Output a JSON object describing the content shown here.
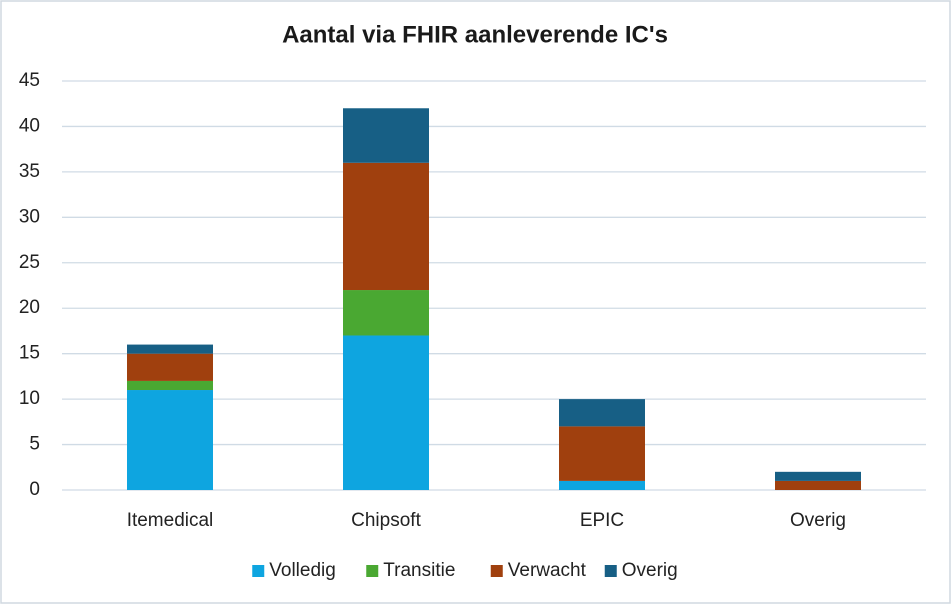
{
  "chart_data": {
    "type": "bar",
    "stacked": true,
    "title": "Aantal via FHIR aanleverende IC's",
    "categories": [
      "Itemedical",
      "Chipsoft",
      "EPIC",
      "Overig"
    ],
    "series": [
      {
        "name": "Volledig",
        "color": "#0ea5e0",
        "values": [
          11,
          17,
          1,
          0
        ]
      },
      {
        "name": "Transitie",
        "color": "#4aa832",
        "values": [
          1,
          5,
          0,
          0
        ]
      },
      {
        "name": "Verwacht",
        "color": "#a0400e",
        "values": [
          3,
          14,
          6,
          1
        ]
      },
      {
        "name": "Overig",
        "color": "#175f85",
        "values": [
          1,
          6,
          3,
          1
        ]
      }
    ],
    "ylim": [
      0,
      45
    ],
    "yticks": [
      0,
      5,
      10,
      15,
      20,
      25,
      30,
      35,
      40,
      45
    ],
    "grid": true,
    "legend": "bottom"
  }
}
